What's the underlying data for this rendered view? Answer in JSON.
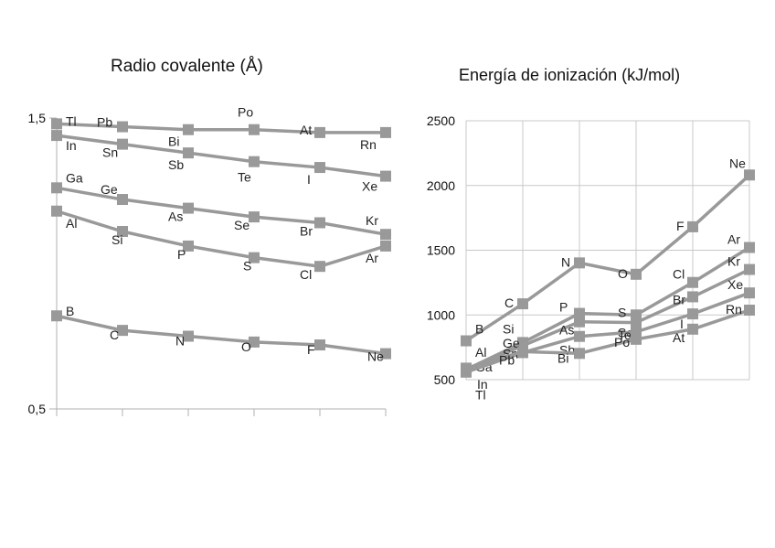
{
  "titles": {
    "left": "Radio covalente (Å)",
    "right": "Energía de ionización (kJ/mol)"
  },
  "colors": {
    "series": "#999999",
    "axis": "#b0b0b0",
    "grid": "#c8c8c8"
  },
  "chart_data": [
    {
      "type": "line",
      "title": "Radio covalente (Å)",
      "xlabel": "",
      "ylabel": "",
      "ylim": [
        0.5,
        1.5
      ],
      "y_ticks": [
        "0,5",
        "1,5"
      ],
      "x": [
        1,
        2,
        3,
        4,
        5,
        6
      ],
      "grid": false,
      "series": [
        {
          "values": [
            0.82,
            0.77,
            0.75,
            0.73,
            0.72,
            0.69
          ],
          "labels": [
            "B",
            "C",
            "N",
            "O",
            "F",
            "Ne"
          ]
        },
        {
          "values": [
            1.18,
            1.11,
            1.06,
            1.02,
            0.99,
            1.06
          ],
          "labels": [
            "Al",
            "Si",
            "P",
            "S",
            "Cl",
            "Ar"
          ]
        },
        {
          "values": [
            1.26,
            1.22,
            1.19,
            1.16,
            1.14,
            1.1
          ],
          "labels": [
            "Ga",
            "Ge",
            "As",
            "Se",
            "Br",
            "Kr"
          ]
        },
        {
          "values": [
            1.44,
            1.41,
            1.38,
            1.35,
            1.33,
            1.3
          ],
          "labels": [
            "In",
            "Sn",
            "Sb",
            "Te",
            "I",
            "Xe"
          ]
        },
        {
          "values": [
            1.48,
            1.47,
            1.46,
            1.46,
            1.45,
            1.45
          ],
          "labels": [
            "Tl",
            "Pb",
            "Bi",
            "Po",
            "At",
            "Rn"
          ]
        }
      ]
    },
    {
      "type": "line",
      "title": "Energía de ionización (kJ/mol)",
      "xlabel": "",
      "ylabel": "",
      "ylim": [
        500,
        2500
      ],
      "y_ticks": [
        "500",
        "1000",
        "1500",
        "2000",
        "2500"
      ],
      "x": [
        1,
        2,
        3,
        4,
        5,
        6
      ],
      "grid": true,
      "series": [
        {
          "values": [
            800,
            1086,
            1402,
            1314,
            1681,
            2081
          ],
          "labels": [
            "B",
            "C",
            "N",
            "O",
            "F",
            "Ne"
          ]
        },
        {
          "values": [
            578,
            787,
            1012,
            1000,
            1251,
            1521
          ],
          "labels": [
            "Al",
            "Si",
            "P",
            "S",
            "Cl",
            "Ar"
          ]
        },
        {
          "values": [
            579,
            762,
            947,
            941,
            1140,
            1351
          ],
          "labels": [
            "Ga",
            "Ge",
            "As",
            "Se",
            "Br",
            "Kr"
          ]
        },
        {
          "values": [
            558,
            709,
            834,
            869,
            1008,
            1170
          ],
          "labels": [
            "In",
            "Sn",
            "Sb",
            "Te",
            "I",
            "Xe"
          ]
        },
        {
          "values": [
            589,
            716,
            703,
            812,
            890,
            1037
          ],
          "labels": [
            "Tl",
            "Pb",
            "Bi",
            "Po",
            "At",
            "Rn"
          ]
        }
      ]
    }
  ]
}
